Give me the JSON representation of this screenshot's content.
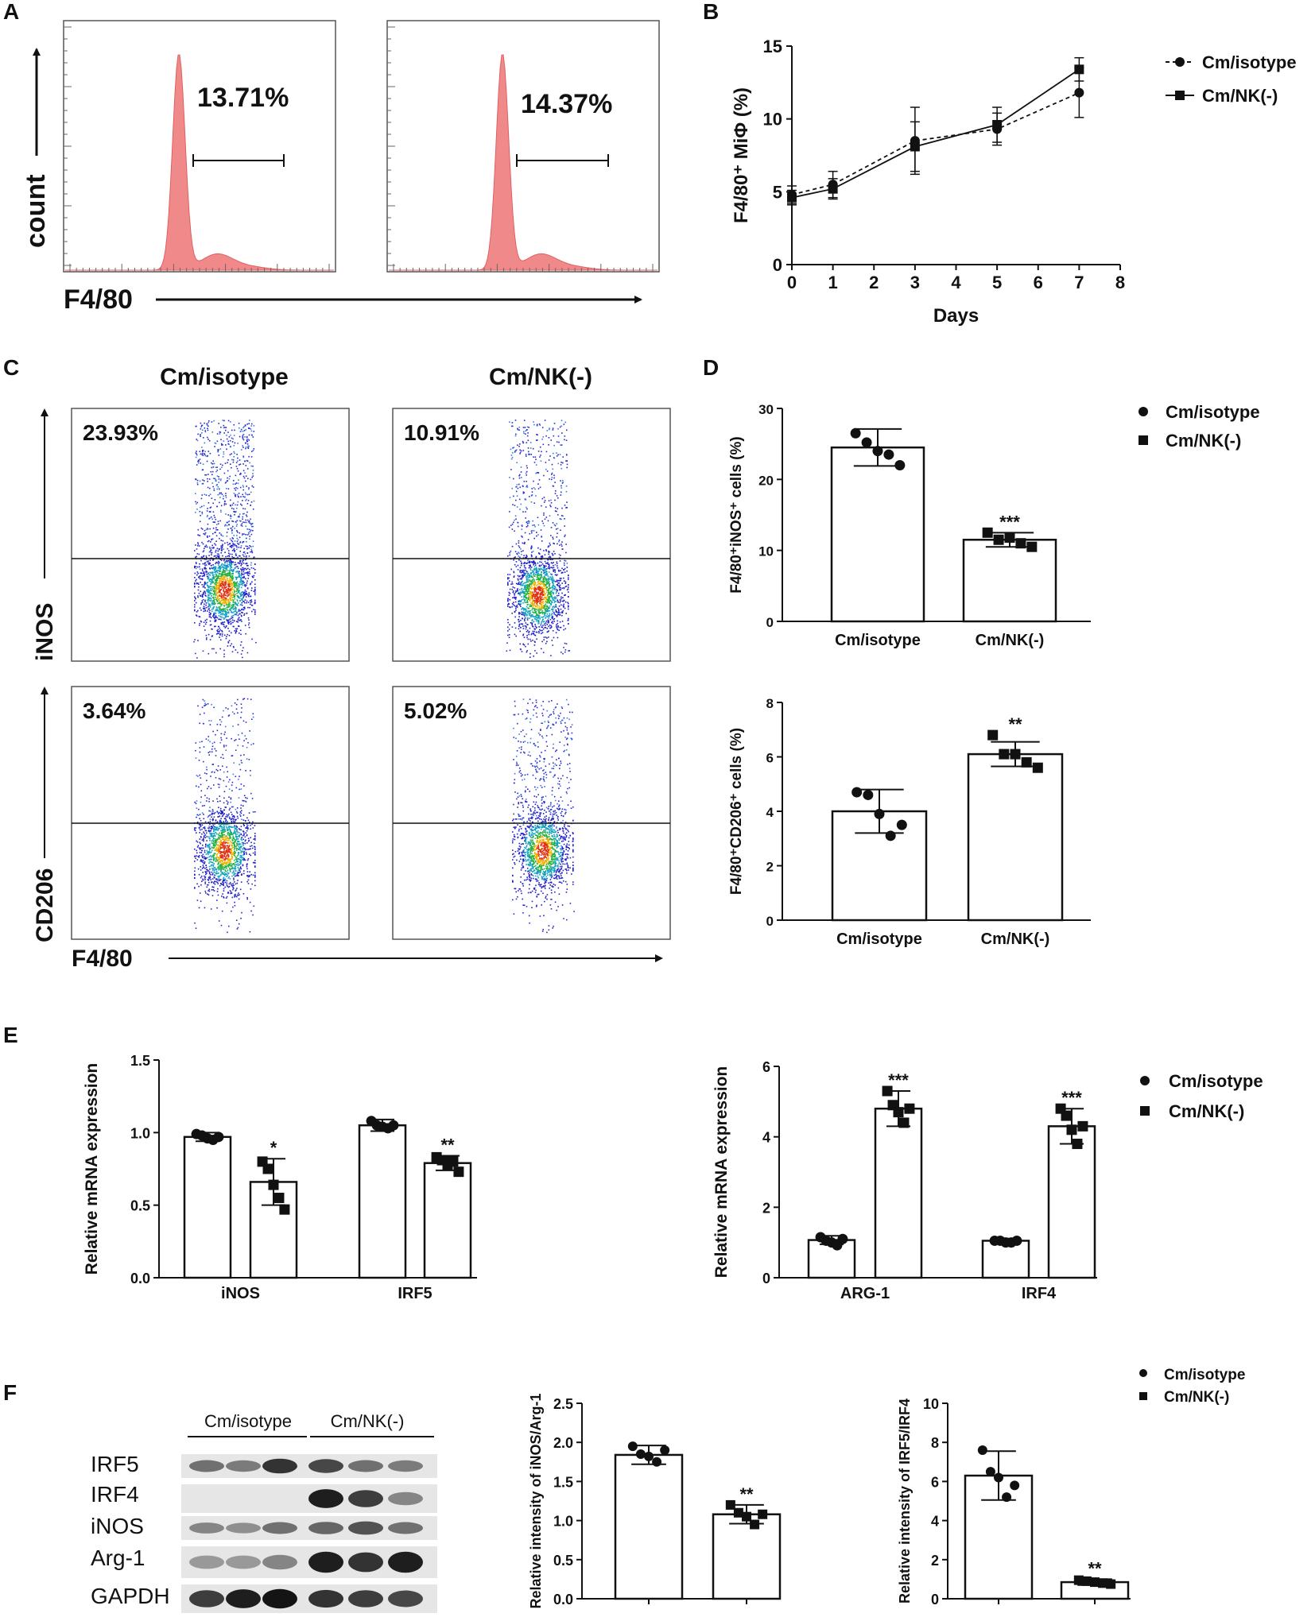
{
  "panel_labels": [
    "A",
    "B",
    "C",
    "D",
    "E",
    "F"
  ],
  "panelA": {
    "ylabel": "count",
    "xlabel": "F4/80",
    "histograms": [
      {
        "name": "Cm/isotype",
        "percent": "13.71%",
        "value": 13.71
      },
      {
        "name": "Cm/NK(-)",
        "percent": "14.37%",
        "value": 14.37
      }
    ],
    "fill_color": "#f08a8a"
  },
  "panelC": {
    "headers": [
      "Cm/isotype",
      "Cm/NK(-)"
    ],
    "ylabel_top": "iNOS",
    "ylabel_bottom": "CD206",
    "xlabel": "F4/80",
    "percents_top": [
      "23.93%",
      "10.91%"
    ],
    "percents_bottom": [
      "3.64%",
      "5.02%"
    ]
  },
  "panelF": {
    "group_labels": [
      "Cm/isotype",
      "Cm/NK(-)"
    ],
    "bands": [
      "IRF5",
      "IRF4",
      "iNOS",
      "Arg-1",
      "GAPDH"
    ],
    "band_intensity": [
      [
        0.55,
        0.5,
        0.85,
        0.75,
        0.55,
        0.5
      ],
      [
        0.0,
        0.0,
        0.0,
        0.95,
        0.8,
        0.45
      ],
      [
        0.45,
        0.4,
        0.55,
        0.6,
        0.7,
        0.55
      ],
      [
        0.35,
        0.35,
        0.45,
        0.95,
        0.85,
        0.95
      ],
      [
        0.8,
        0.95,
        1.0,
        0.85,
        0.8,
        0.75
      ]
    ]
  },
  "chart_data": [
    {
      "id": "B",
      "type": "line",
      "xlabel": "Days",
      "ylabel": "F4/80⁺ MiΦ (%)",
      "xlim": [
        0,
        8
      ],
      "ylim": [
        0,
        15
      ],
      "xticks": [
        "0",
        "1",
        "2",
        "3",
        "4",
        "5",
        "6",
        "7",
        "8"
      ],
      "yticks": [
        "0",
        "5",
        "10",
        "15"
      ],
      "series": [
        {
          "name": "Cm/isotype",
          "marker": "circle",
          "dash": true,
          "x": [
            0,
            1,
            3,
            5,
            7
          ],
          "y": [
            4.8,
            5.5,
            8.5,
            9.3,
            11.8
          ],
          "err": [
            0.6,
            0.9,
            2.3,
            1.1,
            1.7
          ]
        },
        {
          "name": "Cm/NK(-)",
          "marker": "square",
          "dash": false,
          "x": [
            0,
            1,
            3,
            5,
            7
          ],
          "y": [
            4.6,
            5.2,
            8.1,
            9.6,
            13.4
          ],
          "err": [
            0.5,
            0.7,
            1.7,
            1.2,
            0.8
          ]
        }
      ]
    },
    {
      "id": "D1",
      "type": "bar",
      "ylabel": "F4/80⁺iNOS⁺ cells (%)",
      "ylim": [
        0,
        30
      ],
      "yticks": [
        "0",
        "10",
        "20",
        "30"
      ],
      "categories": [
        "Cm/isotype",
        "Cm/NK(-)"
      ],
      "values": [
        24.5,
        11.5
      ],
      "errors": [
        2.6,
        1.0
      ],
      "points": [
        [
          26.5,
          25.2,
          24.0,
          23.5,
          22.0
        ],
        [
          12.5,
          11.5,
          11.8,
          11.0,
          10.5
        ]
      ],
      "annotations": [
        "",
        "***"
      ]
    },
    {
      "id": "D2",
      "type": "bar",
      "ylabel": "F4/80⁺CD206⁺ cells (%)",
      "ylim": [
        0,
        8
      ],
      "yticks": [
        "0",
        "2",
        "4",
        "6",
        "8"
      ],
      "categories": [
        "Cm/isotype",
        "Cm/NK(-)"
      ],
      "values": [
        4.0,
        6.1
      ],
      "errors": [
        0.8,
        0.45
      ],
      "points": [
        [
          4.7,
          4.6,
          3.9,
          3.1,
          3.5
        ],
        [
          6.8,
          6.1,
          6.1,
          5.8,
          5.6
        ]
      ],
      "annotations": [
        "",
        "**"
      ]
    },
    {
      "id": "E1",
      "type": "bar",
      "ylabel": "Relative mRNA expression",
      "ylim": [
        0,
        1.5
      ],
      "yticks": [
        "0.0",
        "0.5",
        "1.0",
        "1.5"
      ],
      "categories": [
        "iNOS",
        "IRF5"
      ],
      "series": [
        {
          "name": "Cm/isotype",
          "values": [
            0.97,
            1.05
          ],
          "errors": [
            0.03,
            0.04
          ],
          "points": [
            [
              0.99,
              0.98,
              0.96,
              0.95,
              0.97
            ],
            [
              1.08,
              1.05,
              1.04,
              1.03,
              1.05
            ]
          ]
        },
        {
          "name": "Cm/NK(-)",
          "values": [
            0.66,
            0.79
          ],
          "errors": [
            0.16,
            0.05
          ],
          "points": [
            [
              0.8,
              0.75,
              0.64,
              0.55,
              0.47
            ],
            [
              0.83,
              0.81,
              0.78,
              0.8,
              0.73
            ]
          ]
        }
      ],
      "annotations": [
        "*",
        "**"
      ]
    },
    {
      "id": "E2",
      "type": "bar",
      "ylabel": "Relative mRNA expression",
      "ylim": [
        0,
        6
      ],
      "yticks": [
        "0",
        "2",
        "4",
        "6"
      ],
      "categories": [
        "ARG-1",
        "IRF4"
      ],
      "series": [
        {
          "name": "Cm/isotype",
          "values": [
            1.07,
            1.05
          ],
          "errors": [
            0.12,
            0.06
          ],
          "points": [
            [
              1.15,
              1.05,
              1.0,
              0.92,
              1.1
            ],
            [
              1.05,
              1.05,
              1.0,
              1.0,
              1.05
            ]
          ]
        },
        {
          "name": "Cm/NK(-)",
          "values": [
            4.8,
            4.3
          ],
          "errors": [
            0.5,
            0.5
          ],
          "points": [
            [
              5.3,
              4.9,
              4.7,
              4.4,
              4.8
            ],
            [
              4.8,
              4.6,
              4.2,
              3.8,
              4.3
            ]
          ]
        }
      ],
      "annotations": [
        "***",
        "***"
      ]
    },
    {
      "id": "F1",
      "type": "bar",
      "ylabel": "Relative intensity of  iNOS/Arg-1",
      "ylim": [
        0,
        2.5
      ],
      "yticks": [
        "0.0",
        "0.5",
        "1.0",
        "1.5",
        "2.0",
        "2.5"
      ],
      "categories": [
        "",
        ""
      ],
      "values": [
        1.84,
        1.08
      ],
      "errors": [
        0.12,
        0.12
      ],
      "points": [
        [
          1.95,
          1.85,
          1.82,
          1.75,
          1.9
        ],
        [
          1.2,
          1.1,
          1.05,
          0.95,
          1.08
        ]
      ],
      "annotations": [
        "",
        "**"
      ]
    },
    {
      "id": "F2",
      "type": "bar",
      "ylabel": "Relative intensity of IRF5/IRF4",
      "ylim": [
        0,
        10
      ],
      "yticks": [
        "0",
        "2",
        "4",
        "6",
        "8",
        "10"
      ],
      "categories": [
        "",
        ""
      ],
      "values": [
        6.3,
        0.85
      ],
      "errors": [
        1.25,
        0.15
      ],
      "points": [
        [
          7.6,
          6.5,
          6.2,
          5.2,
          5.8
        ],
        [
          0.95,
          0.9,
          0.85,
          0.8,
          0.75
        ]
      ],
      "annotations": [
        "",
        "**"
      ]
    }
  ],
  "legend": {
    "series": [
      "Cm/isotype",
      "Cm/NK(-)"
    ],
    "markers": [
      "circle",
      "square"
    ]
  }
}
